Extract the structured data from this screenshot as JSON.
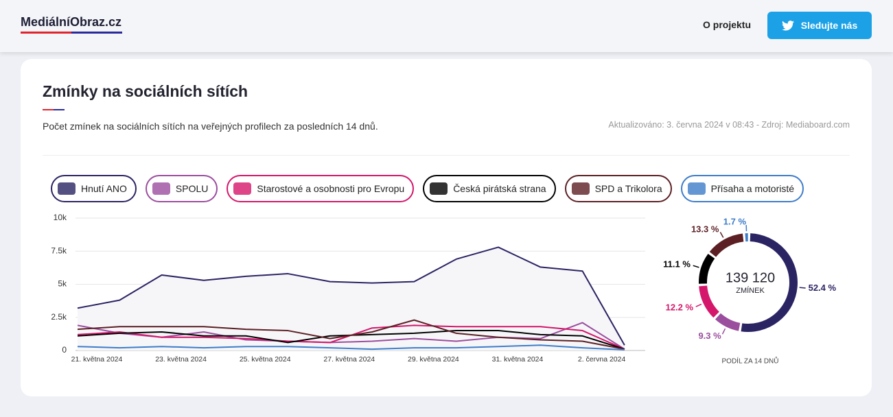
{
  "header": {
    "logo": "MediálníObraz.cz",
    "nav": "O projektu",
    "button": "Sledujte nás"
  },
  "card": {
    "title": "Zmínky na sociálních sítích",
    "subtitle": "Počet zmínek na sociálních sítích na veřejných profilech za posledních 14 dnů.",
    "meta": "Aktualizováno: 3. června 2024 v 08:43 - Zdroj: Mediaboard.com"
  },
  "chart_data": [
    {
      "type": "line",
      "categories": [
        "21. května 2024",
        null,
        "23. května 2024",
        null,
        "25. května 2024",
        null,
        "27. května 2024",
        null,
        "29. května 2024",
        null,
        "31. května 2024",
        null,
        "2. června 2024",
        null
      ],
      "ylim": [
        0,
        10000
      ],
      "yticks": [
        0,
        {
          "value": 2500,
          "label": "2.5k"
        },
        {
          "value": 5000,
          "label": "5k"
        },
        {
          "value": 7500,
          "label": "7.5k"
        },
        {
          "value": 10000,
          "label": "10k"
        }
      ],
      "grid": true,
      "series": [
        {
          "name": "Hnutí ANO",
          "color": "#2b2463",
          "values": [
            3200,
            3800,
            5700,
            5300,
            5600,
            5800,
            5200,
            5100,
            5200,
            6900,
            7800,
            6300,
            6000,
            400
          ]
        },
        {
          "name": "SPOLU",
          "color": "#9b4d9e",
          "values": [
            1900,
            1300,
            1000,
            1400,
            800,
            700,
            600,
            700,
            900,
            700,
            1000,
            900,
            2100,
            100
          ]
        },
        {
          "name": "Starostové a osobnosti pro Evropu",
          "color": "#d4176a",
          "values": [
            1200,
            1400,
            1000,
            1000,
            900,
            700,
            600,
            1700,
            1900,
            1800,
            1800,
            1800,
            1500,
            100
          ]
        },
        {
          "name": "Česká pirátská strana",
          "color": "#000000",
          "values": [
            1100,
            1300,
            1400,
            1100,
            1100,
            600,
            1100,
            1200,
            1300,
            1500,
            1500,
            1200,
            1100,
            100
          ]
        },
        {
          "name": "SPD a Trikolora",
          "color": "#5c1f24",
          "values": [
            1600,
            1800,
            1800,
            1800,
            1600,
            1500,
            900,
            1400,
            2300,
            1300,
            1000,
            800,
            700,
            100
          ]
        },
        {
          "name": "Přísaha a motoristé",
          "color": "#3d7cc9",
          "values": [
            300,
            200,
            300,
            200,
            300,
            300,
            200,
            100,
            200,
            200,
            300,
            400,
            200,
            50
          ]
        }
      ]
    },
    {
      "type": "donut",
      "total": "139 120",
      "total_label": "ZMÍNEK",
      "caption": "PODÍL ZA 14 DNŮ",
      "values": [
        52.4,
        9.3,
        12.2,
        11.1,
        13.3,
        1.7
      ],
      "value_labels": [
        "52.4 %",
        "9.3 %",
        "12.2 %",
        "11.1 %",
        "13.3 %",
        "1.7 %"
      ],
      "colors": [
        "#2b2463",
        "#9b4d9e",
        "#d4176a",
        "#000000",
        "#5c1f24",
        "#3d7cc9"
      ]
    }
  ]
}
